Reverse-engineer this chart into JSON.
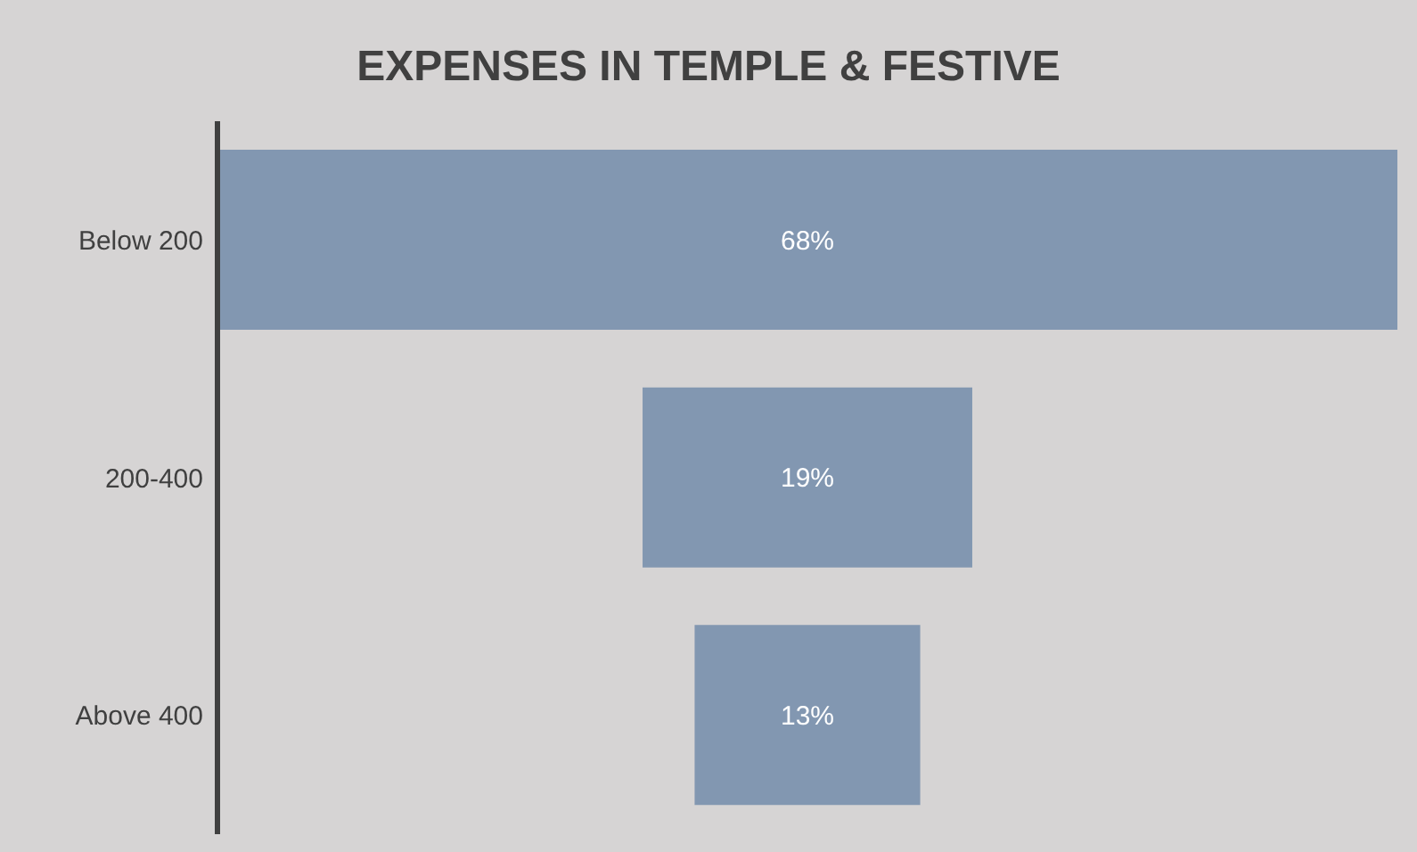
{
  "chart_data": {
    "type": "other",
    "title": "EXPENSES IN TEMPLE & FESTIVE",
    "categories": [
      "Below 200",
      "200-400",
      "Above 400"
    ],
    "values": [
      68,
      19,
      13
    ],
    "value_labels": [
      "68%",
      "19%",
      "13%"
    ],
    "color": "#8297b1"
  }
}
